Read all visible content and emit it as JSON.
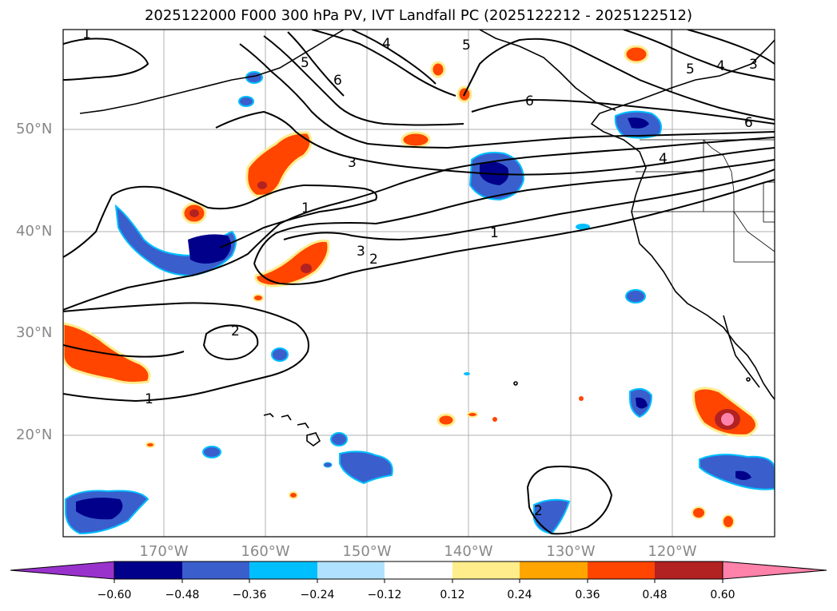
{
  "title": "2025122000 F000 300 hPa PV, IVT Landfall PC (2025122212 - 2025122512)",
  "lat_labels": [
    "50°N",
    "40°N",
    "30°N",
    "20°N"
  ],
  "lon_labels": [
    "170°W",
    "160°W",
    "150°W",
    "140°W",
    "130°W",
    "120°W"
  ],
  "contour_labels": [
    "1",
    "4",
    "5",
    "6",
    "6",
    "5",
    "4",
    "3",
    "6",
    "4",
    "3",
    "1",
    "1",
    "3",
    "2",
    "2",
    "1",
    "2",
    "5"
  ],
  "colorbar": {
    "ticks": [
      "−0.60",
      "−0.48",
      "−0.36",
      "−0.24",
      "−0.12",
      "0.12",
      "0.24",
      "0.36",
      "0.48",
      "0.60"
    ],
    "colors": [
      "#9932cc",
      "#00008b",
      "#3a5fcd",
      "#00bfff",
      "#b0e2ff",
      "#ffffff",
      "#ffec8b",
      "#ffa500",
      "#ff4500",
      "#b22222",
      "#ff82ab"
    ]
  }
}
